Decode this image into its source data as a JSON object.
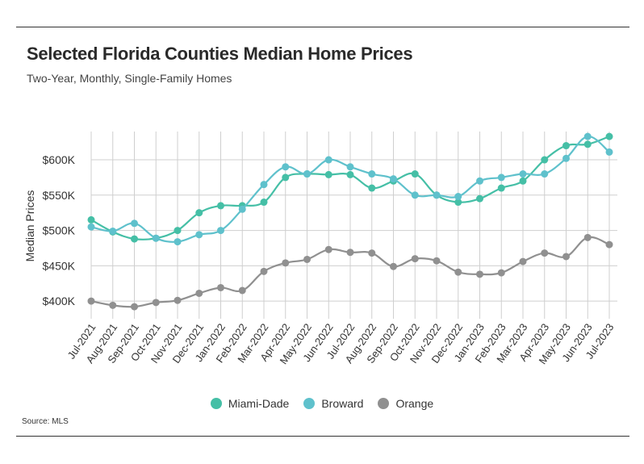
{
  "header": {
    "title": "Selected Florida Counties Median Home Prices",
    "subtitle": "Two-Year, Monthly, Single-Family Homes"
  },
  "footer": {
    "source": "Source: MLS"
  },
  "chart_data": {
    "type": "line",
    "title": "Selected Florida Counties Median Home Prices",
    "subtitle": "Two-Year, Monthly, Single-Family Homes",
    "ylabel": "Median Prices",
    "xlabel": "",
    "ylim": [
      375000,
      640000
    ],
    "yticks": [
      400000,
      450000,
      500000,
      550000,
      600000
    ],
    "ytick_labels": [
      "$400K",
      "$450K",
      "$500K",
      "$550K",
      "$600K"
    ],
    "grid": true,
    "legend_position": "bottom-center",
    "categories": [
      "Jul-2021",
      "Aug-2021",
      "Sep-2021",
      "Oct-2021",
      "Nov-2021",
      "Dec-2021",
      "Jan-2022",
      "Feb-2022",
      "Mar-2022",
      "Apr-2022",
      "May-2022",
      "Jun-2022",
      "Jul-2022",
      "Aug-2022",
      "Sep-2022",
      "Oct-2022",
      "Nov-2022",
      "Dec-2022",
      "Jan-2023",
      "Feb-2023",
      "Mar-2023",
      "Apr-2023",
      "May-2023",
      "Jun-2023",
      "Jul-2023"
    ],
    "series": [
      {
        "name": "Miami-Dade",
        "color": "#45bfa6",
        "values": [
          515000,
          498000,
          488000,
          489000,
          500000,
          525000,
          535000,
          535000,
          540000,
          575000,
          580000,
          579000,
          579000,
          560000,
          570000,
          580000,
          550000,
          540000,
          545000,
          560000,
          570000,
          600000,
          620000,
          622000,
          633000
        ]
      },
      {
        "name": "Broward",
        "color": "#5fc1cc",
        "values": [
          505000,
          499000,
          510000,
          489000,
          484000,
          494000,
          500000,
          530000,
          565000,
          590000,
          580000,
          600000,
          590000,
          580000,
          573000,
          550000,
          550000,
          548000,
          570000,
          575000,
          580000,
          580000,
          602000,
          633000,
          611000
        ]
      },
      {
        "name": "Orange",
        "color": "#909090",
        "values": [
          400000,
          394000,
          392000,
          398000,
          401000,
          411000,
          419000,
          415000,
          442000,
          454000,
          459000,
          473000,
          469000,
          468000,
          449000,
          460000,
          457000,
          441000,
          438000,
          440000,
          456000,
          468000,
          463000,
          490000,
          480000
        ]
      }
    ]
  }
}
